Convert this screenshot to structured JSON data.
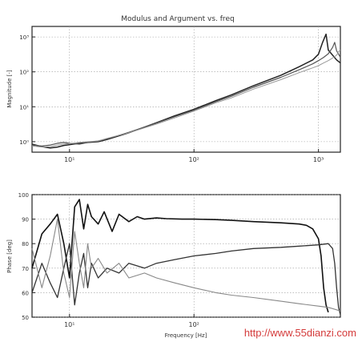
{
  "chart_data": [
    {
      "type": "line",
      "title": "Modulus and Argument vs. freq",
      "xlabel": "",
      "ylabel": "Magnitude [-]",
      "x_scale": "log",
      "y_scale": "log",
      "xlim": [
        5,
        1500
      ],
      "ylim": [
        0.5,
        2000
      ],
      "x_ticks": [
        {
          "value": 10,
          "label": "10¹"
        },
        {
          "value": 100,
          "label": "10²"
        },
        {
          "value": 1000,
          "label": "10³"
        }
      ],
      "y_ticks": [
        {
          "value": 1,
          "label": "10⁰"
        },
        {
          "value": 10,
          "label": "10¹"
        },
        {
          "value": 100,
          "label": "10²"
        },
        {
          "value": 1000,
          "label": "10³"
        }
      ],
      "grid": true,
      "series": [
        {
          "color": "#222222",
          "width": 1.5,
          "x": [
            5,
            6,
            7,
            8,
            9,
            10,
            12,
            14,
            17,
            20,
            30,
            50,
            70,
            100,
            150,
            200,
            300,
            500,
            700,
            900,
            1000,
            1080,
            1150,
            1200,
            1300,
            1400,
            1500
          ],
          "y": [
            0.85,
            0.72,
            0.66,
            0.7,
            0.78,
            0.82,
            0.9,
            0.95,
            1.0,
            1.15,
            1.8,
            3.5,
            5.5,
            8.5,
            15,
            22,
            40,
            80,
            140,
            220,
            320,
            700,
            1200,
            420,
            300,
            220,
            180
          ]
        },
        {
          "color": "#555555",
          "width": 1.2,
          "x": [
            5,
            6,
            7,
            8,
            9,
            10,
            12,
            14,
            17,
            20,
            30,
            50,
            70,
            100,
            150,
            200,
            300,
            500,
            700,
            900,
            1000,
            1100,
            1200,
            1300,
            1350,
            1400,
            1500
          ],
          "y": [
            0.8,
            0.75,
            0.8,
            0.9,
            0.95,
            0.9,
            0.85,
            0.95,
            1.05,
            1.2,
            1.85,
            3.4,
            5.2,
            8.0,
            14,
            20,
            36,
            70,
            115,
            170,
            210,
            260,
            330,
            500,
            700,
            400,
            260
          ]
        },
        {
          "color": "#999999",
          "width": 1.0,
          "x": [
            5,
            6,
            7,
            8,
            9,
            10,
            12,
            14,
            17,
            20,
            30,
            50,
            70,
            100,
            150,
            200,
            300,
            500,
            700,
            900,
            1000,
            1100,
            1200,
            1300,
            1400,
            1450,
            1500
          ],
          "y": [
            0.75,
            0.7,
            0.72,
            0.8,
            0.85,
            0.88,
            0.95,
            1.0,
            1.05,
            1.25,
            1.8,
            3.2,
            4.8,
            7.5,
            13,
            18,
            32,
            60,
            95,
            130,
            150,
            180,
            210,
            250,
            300,
            380,
            420
          ]
        }
      ]
    },
    {
      "type": "line",
      "title": "",
      "xlabel": "Frequency [Hz]",
      "ylabel": "Phase [deg]",
      "x_scale": "log",
      "y_scale": "linear",
      "xlim": [
        5,
        1500
      ],
      "ylim": [
        50,
        100
      ],
      "x_ticks": [
        {
          "value": 10,
          "label": "10¹"
        },
        {
          "value": 100,
          "label": "10²"
        }
      ],
      "y_ticks": [
        {
          "value": 50,
          "label": "50"
        },
        {
          "value": 60,
          "label": "60"
        },
        {
          "value": 70,
          "label": "70"
        },
        {
          "value": 80,
          "label": "80"
        },
        {
          "value": 90,
          "label": "90"
        },
        {
          "value": 100,
          "label": "100"
        }
      ],
      "grid": true,
      "series": [
        {
          "color": "#111111",
          "width": 1.6,
          "x": [
            5,
            6,
            7,
            8,
            9,
            10,
            11,
            12,
            13,
            14,
            15,
            17,
            19,
            22,
            25,
            30,
            35,
            40,
            50,
            60,
            80,
            100,
            150,
            200,
            300,
            500,
            700,
            800,
            900,
            1000,
            1050,
            1100,
            1150,
            1200
          ],
          "y": [
            70,
            84,
            88,
            92,
            80,
            66,
            95,
            98,
            86,
            96,
            91,
            88,
            93,
            85,
            92,
            89,
            91,
            90,
            90.5,
            90.2,
            90,
            90,
            89.8,
            89.5,
            89,
            88.5,
            88,
            87.5,
            86,
            82,
            75,
            62,
            55,
            52
          ]
        },
        {
          "color": "#333333",
          "width": 1.3,
          "x": [
            5,
            6,
            7,
            8,
            9,
            10,
            11,
            12,
            13,
            14,
            15,
            17,
            20,
            25,
            30,
            40,
            50,
            70,
            100,
            150,
            200,
            300,
            500,
            700,
            1000,
            1200,
            1300,
            1350,
            1400,
            1450,
            1500
          ],
          "y": [
            60,
            72,
            64,
            58,
            70,
            80,
            55,
            68,
            76,
            62,
            72,
            66,
            70,
            68,
            72,
            70,
            72,
            73.5,
            75,
            76,
            77,
            78,
            78.5,
            79,
            79.5,
            80,
            78,
            72,
            62,
            54,
            51
          ]
        },
        {
          "color": "#888888",
          "width": 1.1,
          "x": [
            5,
            6,
            7,
            8,
            9,
            10,
            11,
            12,
            13,
            14,
            15,
            17,
            20,
            25,
            30,
            40,
            50,
            70,
            100,
            150,
            200,
            300,
            500,
            700,
            1000,
            1200,
            1300,
            1400,
            1500
          ],
          "y": [
            78,
            62,
            75,
            90,
            68,
            58,
            85,
            72,
            62,
            80,
            70,
            74,
            68,
            72,
            66,
            68,
            66,
            64,
            62,
            60,
            59,
            58,
            56.5,
            55.5,
            54.5,
            54,
            53.5,
            53,
            52.5
          ]
        }
      ]
    }
  ],
  "watermark": "http://www.55dianzi.com"
}
